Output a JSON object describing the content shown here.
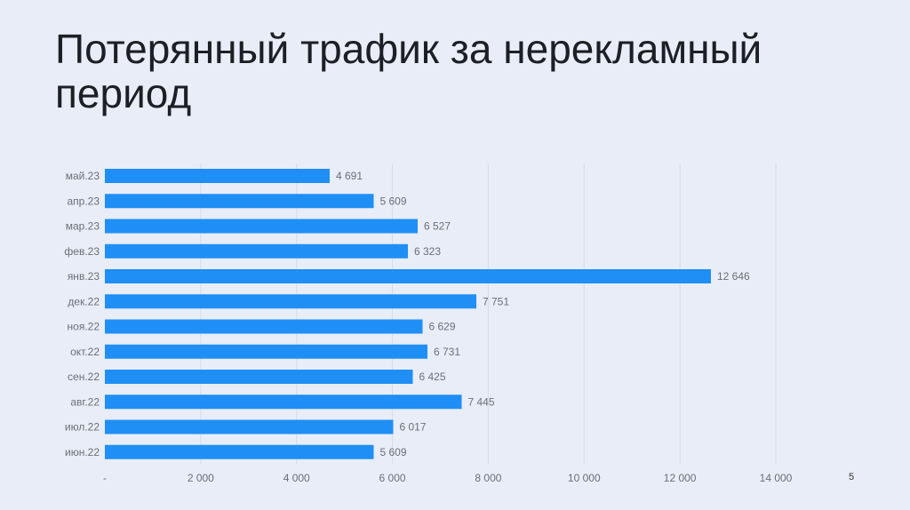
{
  "title": "Потерянный трафик за нерекламный период",
  "page_number": "5",
  "colors": {
    "bar": "#1f8ff5",
    "gridline": "#d7dce6",
    "text": "#6b6f76"
  },
  "chart_data": {
    "type": "bar",
    "orientation": "horizontal",
    "categories": [
      "май.23",
      "апр.23",
      "мар.23",
      "фев.23",
      "янв.23",
      "дек.22",
      "ноя.22",
      "окт.22",
      "сен.22",
      "авг.22",
      "июл.22",
      "июн.22"
    ],
    "values": [
      4691,
      5609,
      6527,
      6323,
      12646,
      7751,
      6629,
      6731,
      6425,
      7445,
      6017,
      5609
    ],
    "value_labels": [
      "4 691",
      "5 609",
      "6 527",
      "6 323",
      "12 646",
      "7 751",
      "6 629",
      "6 731",
      "6 425",
      "7 445",
      "6 017",
      "5 609"
    ],
    "xlim": [
      0,
      14000
    ],
    "x_ticks": [
      0,
      2000,
      4000,
      6000,
      8000,
      10000,
      12000,
      14000
    ],
    "x_tick_labels": [
      "-",
      "2 000",
      "4 000",
      "6 000",
      "8 000",
      "10 000",
      "12 000",
      "14 000"
    ],
    "grid": true,
    "legend": "none"
  }
}
